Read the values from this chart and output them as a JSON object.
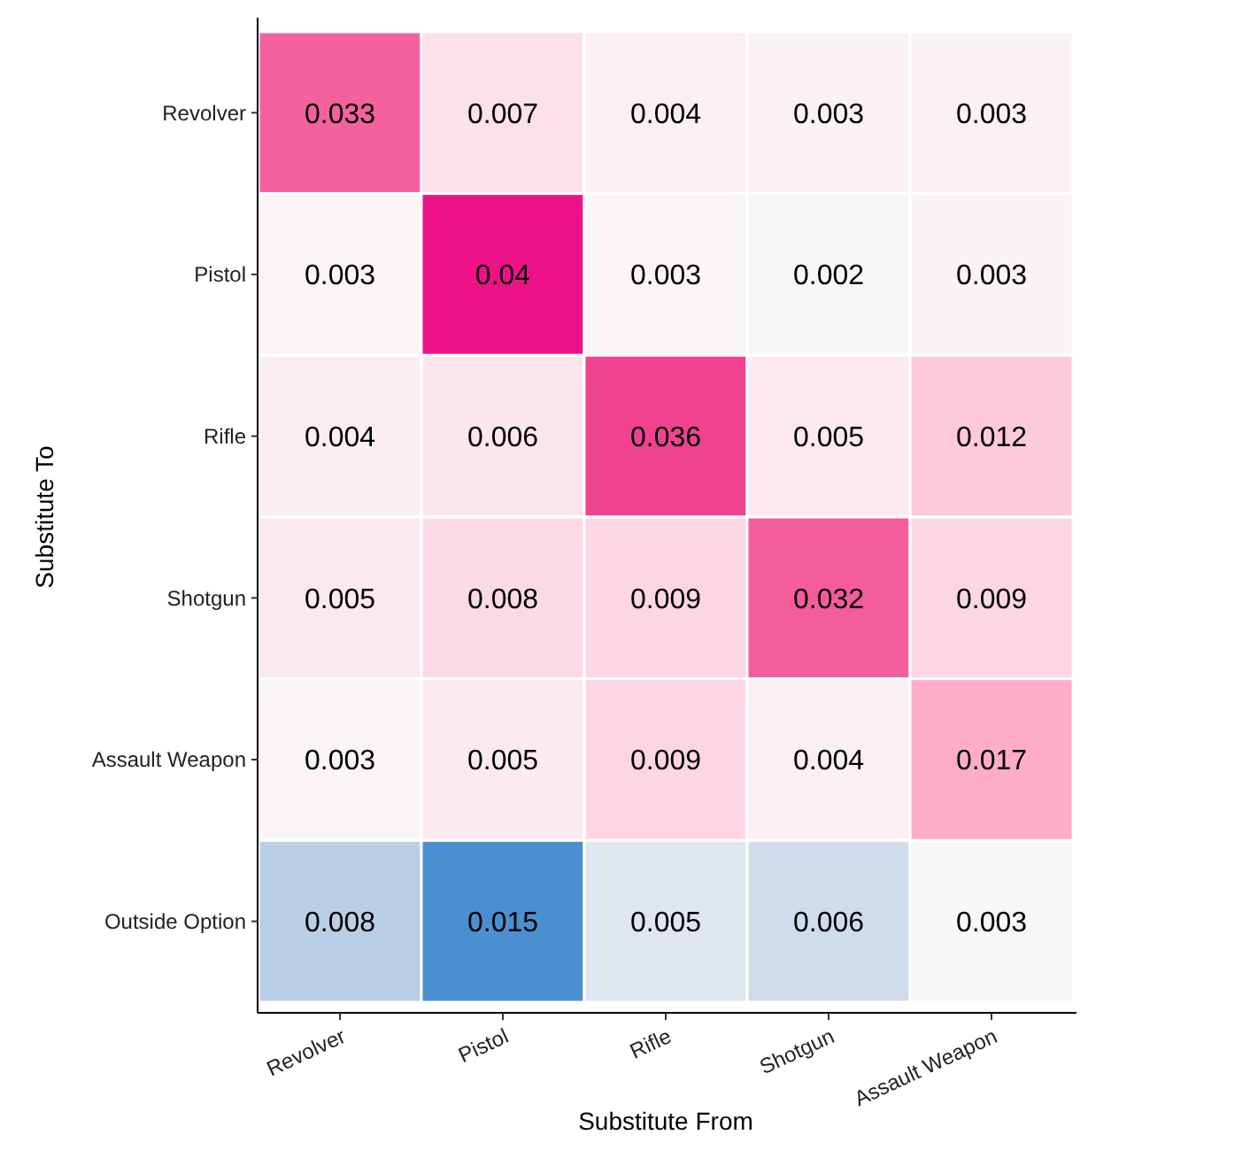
{
  "chart_data": {
    "type": "heatmap",
    "xlabel": "Substitute From",
    "ylabel": "Substitute To",
    "categories": [
      "Revolver",
      "Pistol",
      "Rifle",
      "Shotgun",
      "Assault Weapon"
    ],
    "y_categories": [
      "Revolver",
      "Pistol",
      "Rifle",
      "Shotgun",
      "Assault Weapon",
      "Outside Option"
    ],
    "data_labels": true,
    "cells": [
      [
        0.033,
        0.007,
        0.004,
        0.003,
        0.003
      ],
      [
        0.003,
        0.04,
        0.003,
        0.002,
        0.003
      ],
      [
        0.004,
        0.006,
        0.036,
        0.005,
        0.012
      ],
      [
        0.005,
        0.008,
        0.009,
        0.032,
        0.009
      ],
      [
        0.003,
        0.005,
        0.009,
        0.004,
        0.017
      ],
      [
        0.008,
        0.015,
        0.005,
        0.006,
        0.003
      ]
    ],
    "colors": [
      [
        "#f4629e",
        "#fce0ea",
        "#faeff3",
        "#f9f1f4",
        "#f9f1f4"
      ],
      [
        "#f9f5f6",
        "#ee1289",
        "#f9f5f6",
        "#f7f7f7",
        "#f9f3f5"
      ],
      [
        "#faeef2",
        "#fbe6ed",
        "#f0428f",
        "#fbe9ef",
        "#fdc9dc"
      ],
      [
        "#fae9ef",
        "#fbdae6",
        "#fcd6e3",
        "#f45d9c",
        "#fcd6e3"
      ],
      [
        "#f9f5f6",
        "#fbeaf0",
        "#fed6e2",
        "#faeff3",
        "#fdadc9"
      ],
      [
        "#b8cfe6",
        "#4a90d0",
        "#dfe6f0",
        "#cfdcee",
        "#f7f7f7"
      ]
    ]
  }
}
